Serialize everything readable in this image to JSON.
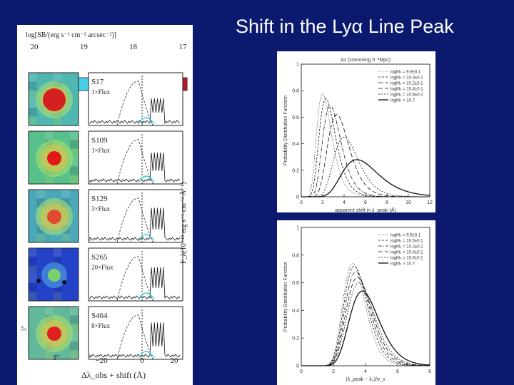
{
  "slide": {
    "title": "Shift in the Lyα Line Peak"
  },
  "left_panel": {
    "colorbar_label": "log[SB/(erg s⁻¹ cm⁻² arcsec⁻²)]",
    "colorbar_ticks": [
      "20",
      "19",
      "18",
      "17"
    ],
    "colorbar_colors": [
      "#1c2fb8",
      "#2f6ae0",
      "#3aa6f0",
      "#48d0e8",
      "#6de0b0",
      "#a8e070",
      "#e8e040",
      "#f0a030",
      "#e04828",
      "#c01828"
    ],
    "ylabel": "F_λ(10⁻¹⁸ erg s⁻¹ cm⁻² Å⁻¹)",
    "xlabel": "Δλ_obs + shift (Å)",
    "x_ticks": [
      "−20",
      "0",
      "20"
    ],
    "image_scale_x": "3\"",
    "image_scale_y": "3\"",
    "rows": [
      {
        "name": "S17",
        "flux": "1×Flux",
        "bg": "#4fb6b0",
        "core": "#d42020"
      },
      {
        "name": "S109",
        "flux": "1×Flux",
        "bg": "#58c08a",
        "core": "#e01818"
      },
      {
        "name": "S129",
        "flux": "3×Flux",
        "bg": "#4aa8b8",
        "core": "#e04a30"
      },
      {
        "name": "S265",
        "flux": "20×Flux",
        "bg": "#2342c8",
        "core": "#7ad070"
      },
      {
        "name": "S464",
        "flux": "8×Flux",
        "bg": "#62b89a",
        "core": "#e02020"
      }
    ]
  },
  "top_right_plot": {
    "chart_data": {
      "type": "line",
      "top_axis_label": "Δz (comoving h⁻¹Mpc)",
      "xlabel": "apparent shift in λ_peak (Å)",
      "ylabel": "Probability Distribution Function",
      "x_ticks": [
        "0",
        "2",
        "4",
        "6",
        "8",
        "10",
        "12"
      ],
      "y_ticks": [
        "0",
        "0.2",
        "0.4",
        "0.6",
        "0.8",
        "1"
      ],
      "xlim": [
        0,
        12
      ],
      "ylim": [
        0,
        1
      ],
      "legend": [
        "logMₕ = 9.9±0.1",
        "logMₕ = 10.0±0.1",
        "logMₕ = 10.2±0.1",
        "logMₕ = 10.4±0.1",
        "logMₕ = 10.6±0.1",
        "logMₕ > 10.7"
      ],
      "series": [
        {
          "name": "logMₕ = 9.9±0.1",
          "peak": 2.0,
          "height": 0.78,
          "width": 0.9,
          "dash": "1,2"
        },
        {
          "name": "logMₕ = 10.0±0.1",
          "peak": 2.3,
          "height": 0.74,
          "width": 1.0,
          "dash": "3,2"
        },
        {
          "name": "logMₕ = 10.2±0.1",
          "peak": 2.7,
          "height": 0.69,
          "width": 1.1,
          "dash": "5,2,1,2"
        },
        {
          "name": "logMₕ = 10.4±0.1",
          "peak": 3.3,
          "height": 0.62,
          "width": 1.3,
          "dash": "6,3"
        },
        {
          "name": "logMₕ = 10.6±0.1",
          "peak": 4.0,
          "height": 0.45,
          "width": 1.5,
          "dash": "2,2"
        },
        {
          "name": "logMₕ > 10.7",
          "peak": 5.2,
          "height": 0.28,
          "width": 2.2,
          "dash": ""
        }
      ]
    }
  },
  "bottom_right_plot": {
    "chart_data": {
      "type": "line",
      "xlabel": "(λ_peak − λ₀)/σ_v",
      "ylabel": "Probability Distribution Function",
      "x_ticks": [
        "0",
        "2",
        "4",
        "6",
        "8"
      ],
      "y_ticks": [
        "0",
        "0.2",
        "0.4",
        "0.6",
        "0.8",
        "1"
      ],
      "xlim": [
        0,
        8
      ],
      "ylim": [
        0,
        1
      ],
      "legend": [
        "logMₕ = 9.9±0.1",
        "logMₕ = 10.0±0.1",
        "logMₕ = 10.2±0.1",
        "logMₕ = 10.4±0.1",
        "logMₕ = 10.6±0.1",
        "logMₕ > 10.7"
      ],
      "series": [
        {
          "name": "logMₕ = 9.9±0.1",
          "peak": 3.2,
          "height": 0.74,
          "width": 0.9,
          "dash": "1,2"
        },
        {
          "name": "logMₕ = 10.0±0.1",
          "peak": 3.3,
          "height": 0.72,
          "width": 0.95,
          "dash": "3,2"
        },
        {
          "name": "logMₕ = 10.2±0.1",
          "peak": 3.4,
          "height": 0.68,
          "width": 1.0,
          "dash": "5,2,1,2"
        },
        {
          "name": "logMₕ = 10.4±0.1",
          "peak": 3.5,
          "height": 0.64,
          "width": 1.05,
          "dash": "6,3"
        },
        {
          "name": "logMₕ = 10.6±0.1",
          "peak": 3.6,
          "height": 0.6,
          "width": 1.1,
          "dash": "2,2"
        },
        {
          "name": "logMₕ > 10.7",
          "peak": 3.8,
          "height": 0.54,
          "width": 1.2,
          "dash": ""
        }
      ]
    }
  }
}
